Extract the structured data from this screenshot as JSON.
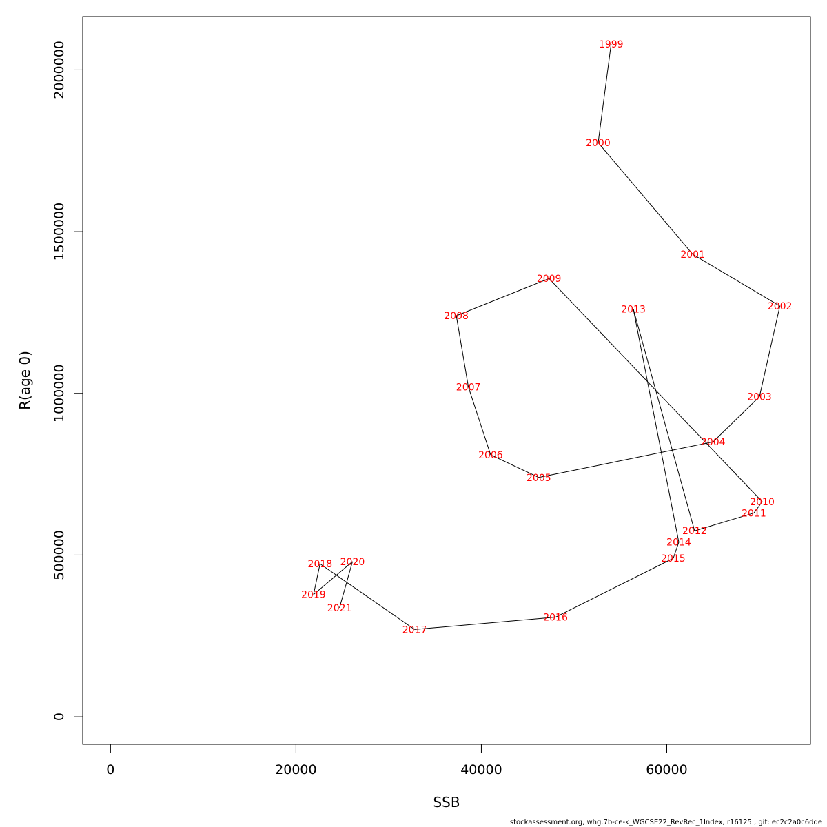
{
  "chart_data": {
    "type": "line",
    "xlabel": "SSB",
    "ylabel": "R(age 0)",
    "xlim": [
      -3000,
      75500
    ],
    "ylim": [
      -85000,
      2165000
    ],
    "x_ticks": [
      0,
      20000,
      40000,
      60000
    ],
    "y_ticks": [
      0,
      500000,
      1000000,
      1500000,
      2000000
    ],
    "x_tick_labels": [
      "0",
      "20000",
      "40000",
      "60000"
    ],
    "y_tick_labels": [
      "0",
      "500000",
      "1000000",
      "1500000",
      "2000000"
    ],
    "grid": false,
    "series": [
      {
        "color": "#000000",
        "label_color": "#ff0000",
        "points": [
          {
            "year": "1999",
            "x": 54000,
            "y": 2080000
          },
          {
            "year": "2000",
            "x": 52600,
            "y": 1775000
          },
          {
            "year": "2001",
            "x": 62800,
            "y": 1430000
          },
          {
            "year": "2002",
            "x": 72200,
            "y": 1270000
          },
          {
            "year": "2003",
            "x": 70000,
            "y": 990000
          },
          {
            "year": "2004",
            "x": 65000,
            "y": 850000
          },
          {
            "year": "2005",
            "x": 46200,
            "y": 740000
          },
          {
            "year": "2006",
            "x": 41000,
            "y": 810000
          },
          {
            "year": "2007",
            "x": 38600,
            "y": 1020000
          },
          {
            "year": "2008",
            "x": 37300,
            "y": 1240000
          },
          {
            "year": "2009",
            "x": 47300,
            "y": 1355000
          },
          {
            "year": "2010",
            "x": 70300,
            "y": 665000
          },
          {
            "year": "2011",
            "x": 69400,
            "y": 630000
          },
          {
            "year": "2012",
            "x": 63000,
            "y": 575000
          },
          {
            "year": "2013",
            "x": 56400,
            "y": 1260000
          },
          {
            "year": "2014",
            "x": 61300,
            "y": 540000
          },
          {
            "year": "2015",
            "x": 60700,
            "y": 490000
          },
          {
            "year": "2016",
            "x": 48000,
            "y": 308000
          },
          {
            "year": "2017",
            "x": 32800,
            "y": 270000
          },
          {
            "year": "2018",
            "x": 22600,
            "y": 473000
          },
          {
            "year": "2019",
            "x": 21900,
            "y": 378000
          },
          {
            "year": "2020",
            "x": 26100,
            "y": 480000
          },
          {
            "year": "2021",
            "x": 24700,
            "y": 337000
          }
        ]
      }
    ]
  },
  "footer": {
    "text": "stockassessment.org, whg.7b-ce-k_WGCSE22_RevRec_1Index, r16125 , git: ec2c2a0c6dde"
  }
}
